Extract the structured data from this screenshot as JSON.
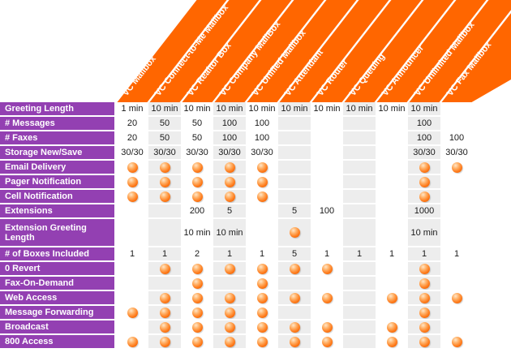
{
  "colors": {
    "orange": "#FF6600",
    "purple": "#9340B2",
    "stripe": "#EDEDED",
    "header_text": "#FFFFFF",
    "cell_text": "#1A1A1A"
  },
  "icons": {
    "feature_dot": "glossy-orange-sphere-meaning-feature-included"
  },
  "columns": [
    "VC Mailbox",
    "VC Connect-to-Me Mailbox",
    "VC Realtor Box",
    "VC Company MailBox",
    "VC Unified Mailbox",
    "VC Attendant",
    "VC Router",
    "VC Queuing",
    "VC Announcer",
    "VC Unlimited Mailbox",
    "VC Fax Mailbox"
  ],
  "rows": [
    {
      "label": "Greeting Length",
      "cells": [
        "1 min",
        "10 min",
        "10 min",
        "10 min",
        "10 min",
        "10 min",
        "10 min",
        "10 min",
        "10 min",
        "10 min",
        ""
      ]
    },
    {
      "label": "# Messages",
      "cells": [
        "20",
        "50",
        "50",
        "100",
        "100",
        "",
        "",
        "",
        "",
        "100",
        ""
      ]
    },
    {
      "label": "# Faxes",
      "cells": [
        "20",
        "50",
        "50",
        "100",
        "100",
        "",
        "",
        "",
        "",
        "100",
        "100"
      ]
    },
    {
      "label": "Storage New/Save",
      "cells": [
        "30/30",
        "30/30",
        "30/30",
        "30/30",
        "30/30",
        "",
        "",
        "",
        "",
        "30/30",
        "30/30"
      ]
    },
    {
      "label": "Email Delivery",
      "cells": [
        "dot",
        "dot",
        "dot",
        "dot",
        "dot",
        "",
        "",
        "",
        "",
        "dot",
        "dot"
      ]
    },
    {
      "label": "Pager Notification",
      "cells": [
        "dot",
        "dot",
        "dot",
        "dot",
        "dot",
        "",
        "",
        "",
        "",
        "dot",
        ""
      ]
    },
    {
      "label": "Cell Notification",
      "cells": [
        "dot",
        "dot",
        "dot",
        "dot",
        "dot",
        "",
        "",
        "",
        "",
        "dot",
        ""
      ]
    },
    {
      "label": "Extensions",
      "cells": [
        "",
        "",
        "200",
        "5",
        "",
        "5",
        "100",
        "",
        "",
        "1000",
        ""
      ]
    },
    {
      "label": "Extension Greeting Length",
      "cells": [
        "",
        "",
        "10 min",
        "10 min",
        "",
        "dot",
        "",
        "",
        "",
        "10 min",
        ""
      ]
    },
    {
      "label": "# of Boxes Included",
      "cells": [
        "1",
        "1",
        "2",
        "1",
        "1",
        "5",
        "1",
        "1",
        "1",
        "1",
        "1"
      ]
    },
    {
      "label": "0 Revert",
      "cells": [
        "",
        "dot",
        "dot",
        "dot",
        "dot",
        "dot",
        "dot",
        "",
        "",
        "dot",
        ""
      ]
    },
    {
      "label": "Fax-On-Demand",
      "cells": [
        "",
        "",
        "dot",
        "",
        "dot",
        "",
        "",
        "",
        "",
        "dot",
        ""
      ]
    },
    {
      "label": "Web Access",
      "cells": [
        "",
        "dot",
        "dot",
        "dot",
        "dot",
        "dot",
        "dot",
        "",
        "dot",
        "dot",
        "dot"
      ]
    },
    {
      "label": "Message Forwarding",
      "cells": [
        "dot",
        "dot",
        "dot",
        "dot",
        "dot",
        "",
        "",
        "",
        "",
        "dot",
        ""
      ]
    },
    {
      "label": "Broadcast",
      "cells": [
        "",
        "dot",
        "dot",
        "dot",
        "dot",
        "dot",
        "dot",
        "",
        "dot",
        "dot",
        ""
      ]
    },
    {
      "label": "800 Access",
      "cells": [
        "dot",
        "dot",
        "dot",
        "dot",
        "dot",
        "dot",
        "dot",
        "",
        "dot",
        "dot",
        "dot"
      ]
    }
  ]
}
